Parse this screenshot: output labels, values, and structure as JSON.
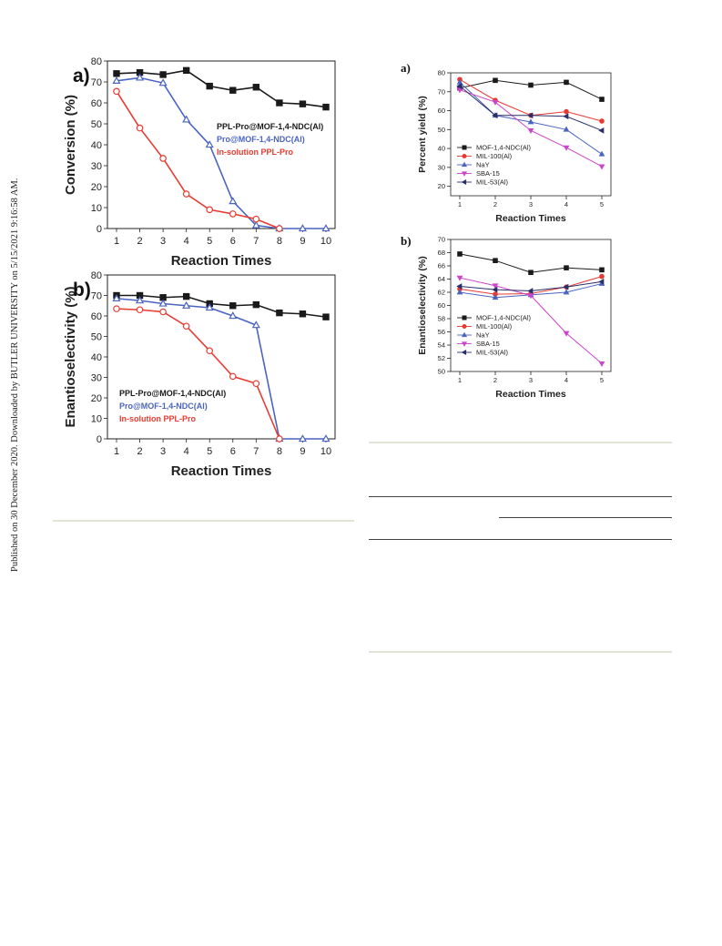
{
  "side_note": "Published on 30 December 2020. Downloaded by BUTLER UNIVERSITY on 5/15/2021 9:16:58 AM.",
  "colors": {
    "black": "#1a1a1a",
    "blue": "#4a64c0",
    "red": "#e83a30",
    "magenta": "#cc44cc",
    "navy": "#2a2f6a"
  },
  "chart_data": [
    {
      "id": "left-a",
      "type": "line",
      "panel_label": "a)",
      "xlabel": "Reaction Times",
      "ylabel": "Conversion (%)",
      "x": [
        1,
        2,
        3,
        4,
        5,
        6,
        7,
        8,
        9,
        10
      ],
      "ylim": [
        0,
        80
      ],
      "yticks": [
        0,
        10,
        20,
        30,
        40,
        50,
        60,
        70,
        80
      ],
      "legend_placement": "right",
      "series": [
        {
          "name": "PPL-Pro@MOF-1,4-NDC(Al)",
          "color": "#1a1a1a",
          "marker": "square-filled",
          "values": [
            74,
            74.5,
            73.5,
            75.5,
            68,
            66,
            67.5,
            60,
            59.5,
            58
          ]
        },
        {
          "name": "Pro@MOF-1,4-NDC(Al)",
          "color": "#4a64c0",
          "marker": "triangle-open",
          "values": [
            70.5,
            72,
            69.5,
            52,
            40,
            13,
            1.5,
            0,
            0,
            0
          ]
        },
        {
          "name": "In-solution PPL-Pro",
          "color": "#e83a30",
          "marker": "circle-open",
          "values": [
            65.5,
            48,
            33.5,
            16.5,
            9,
            7,
            4.5,
            0,
            null,
            null
          ]
        }
      ]
    },
    {
      "id": "left-b",
      "type": "line",
      "panel_label": "b)",
      "xlabel": "Reaction Times",
      "ylabel": "Enantioselectivity (%)",
      "x": [
        1,
        2,
        3,
        4,
        5,
        6,
        7,
        8,
        9,
        10
      ],
      "ylim": [
        0,
        80
      ],
      "yticks": [
        0,
        10,
        20,
        30,
        40,
        50,
        60,
        70,
        80
      ],
      "legend_placement": "left",
      "series": [
        {
          "name": "PPL-Pro@MOF-1,4-NDC(Al)",
          "color": "#1a1a1a",
          "marker": "square-filled",
          "values": [
            70,
            70,
            69,
            69.5,
            66,
            65,
            65.5,
            61.5,
            61,
            59.5
          ]
        },
        {
          "name": "Pro@MOF-1,4-NDC(Al)",
          "color": "#4a64c0",
          "marker": "triangle-open",
          "values": [
            68.5,
            67.5,
            66,
            65,
            64,
            60,
            55.5,
            0,
            0,
            0
          ]
        },
        {
          "name": "In-solution PPL-Pro",
          "color": "#e83a30",
          "marker": "circle-open",
          "values": [
            63.5,
            63,
            62,
            55,
            43,
            30.5,
            27,
            0,
            null,
            null
          ]
        }
      ]
    },
    {
      "id": "right-a",
      "type": "line",
      "panel_label": "a)",
      "xlabel": "Reaction Times",
      "ylabel": "Percent yield (%)",
      "x": [
        1,
        2,
        3,
        4,
        5
      ],
      "ylim": [
        15,
        80
      ],
      "yticks": [
        20,
        30,
        40,
        50,
        60,
        70,
        80
      ],
      "legend_placement": "bottom-left",
      "series": [
        {
          "name": "MOF-1,4-NDC(Al)",
          "color": "#1a1a1a",
          "marker": "square-filled",
          "values": [
            72,
            76,
            73.5,
            75,
            66
          ]
        },
        {
          "name": "MIL-100(Al)",
          "color": "#e83a30",
          "marker": "circle-filled",
          "values": [
            76.5,
            65.5,
            57.5,
            59.5,
            54.5
          ]
        },
        {
          "name": "NaY",
          "color": "#4a64c0",
          "marker": "triangle-up-filled",
          "values": [
            75,
            57.5,
            54,
            50,
            37
          ]
        },
        {
          "name": "SBA-15",
          "color": "#cc44cc",
          "marker": "triangle-down-filled",
          "values": [
            71,
            64.5,
            49.5,
            40.5,
            30.5
          ]
        },
        {
          "name": "MIL-53(Al)",
          "color": "#2a2f6a",
          "marker": "triangle-left-filled",
          "values": [
            73,
            57.5,
            57.5,
            57,
            49.5
          ]
        }
      ]
    },
    {
      "id": "right-b",
      "type": "line",
      "panel_label": "b)",
      "xlabel": "Reaction Times",
      "ylabel": "Enantioselectivity (%)",
      "x": [
        1,
        2,
        3,
        4,
        5
      ],
      "ylim": [
        50,
        70
      ],
      "yticks": [
        50,
        52,
        54,
        56,
        58,
        60,
        62,
        64,
        66,
        68,
        70
      ],
      "legend_placement": "bottom-left",
      "series": [
        {
          "name": "MOF-1,4-NDC(Al)",
          "color": "#1a1a1a",
          "marker": "square-filled",
          "values": [
            67.8,
            66.8,
            65,
            65.7,
            65.4
          ]
        },
        {
          "name": "MIL-100(Al)",
          "color": "#e83a30",
          "marker": "circle-filled",
          "values": [
            62.5,
            61.7,
            61.8,
            62.8,
            64.4
          ]
        },
        {
          "name": "NaY",
          "color": "#4a64c0",
          "marker": "triangle-up-filled",
          "values": [
            62,
            61.2,
            61.6,
            62,
            63.3
          ]
        },
        {
          "name": "SBA-15",
          "color": "#cc44cc",
          "marker": "triangle-down-filled",
          "values": [
            64.2,
            63,
            61.5,
            55.8,
            51.2
          ]
        },
        {
          "name": "MIL-53(Al)",
          "color": "#2a2f6a",
          "marker": "triangle-left-filled",
          "values": [
            62.9,
            62.4,
            62.2,
            62.8,
            63.6
          ]
        }
      ]
    }
  ]
}
